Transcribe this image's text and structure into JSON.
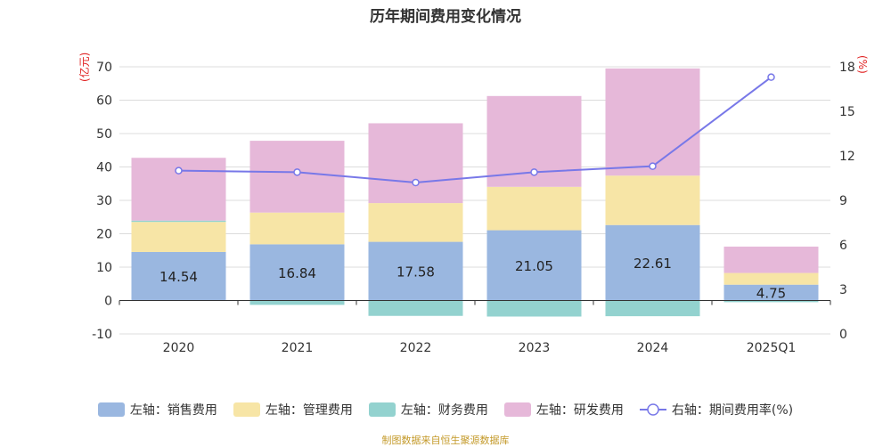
{
  "title": "历年期间费用变化情况",
  "left_unit": "(亿元)",
  "right_unit": "(%)",
  "footer": "制图数据来自恒生聚源数据库",
  "colors": {
    "sales": "#9ab7e0",
    "admin": "#f7e5a6",
    "finance": "#93d2cf",
    "rnd": "#e6b8d9",
    "rate": "#7878e8"
  },
  "chart_data": {
    "type": "bar",
    "categories": [
      "2020",
      "2021",
      "2022",
      "2023",
      "2024",
      "2025Q1"
    ],
    "series": [
      {
        "name": "左轴：销售费用",
        "axis": "left",
        "stack": "cost",
        "values": [
          14.54,
          16.84,
          17.58,
          21.05,
          22.61,
          4.75
        ],
        "labels": [
          "14.54",
          "16.84",
          "17.58",
          "21.05",
          "22.61",
          "4.75"
        ]
      },
      {
        "name": "左轴：管理费用",
        "axis": "left",
        "stack": "cost",
        "values": [
          9.0,
          9.5,
          11.6,
          13.0,
          14.8,
          3.5
        ]
      },
      {
        "name": "左轴：财务费用",
        "axis": "left",
        "stack": "cost",
        "values": [
          0.4,
          -1.3,
          -4.6,
          -4.8,
          -4.7,
          -0.5
        ]
      },
      {
        "name": "左轴：研发费用",
        "axis": "left",
        "stack": "cost",
        "values": [
          18.8,
          21.5,
          23.9,
          27.2,
          32.1,
          7.9
        ]
      },
      {
        "name": "右轴：期间费用率(%)",
        "axis": "right",
        "type": "line",
        "values": [
          11.0,
          10.9,
          10.2,
          10.9,
          11.3,
          17.3
        ]
      }
    ],
    "left_axis": {
      "min": -10,
      "max": 70,
      "ticks": [
        -10,
        0,
        10,
        20,
        30,
        40,
        50,
        60,
        70
      ]
    },
    "right_axis": {
      "min": 0,
      "max": 18,
      "ticks": [
        0,
        3,
        6,
        9,
        12,
        15,
        18
      ]
    },
    "grid": true,
    "legend_position": "bottom"
  }
}
